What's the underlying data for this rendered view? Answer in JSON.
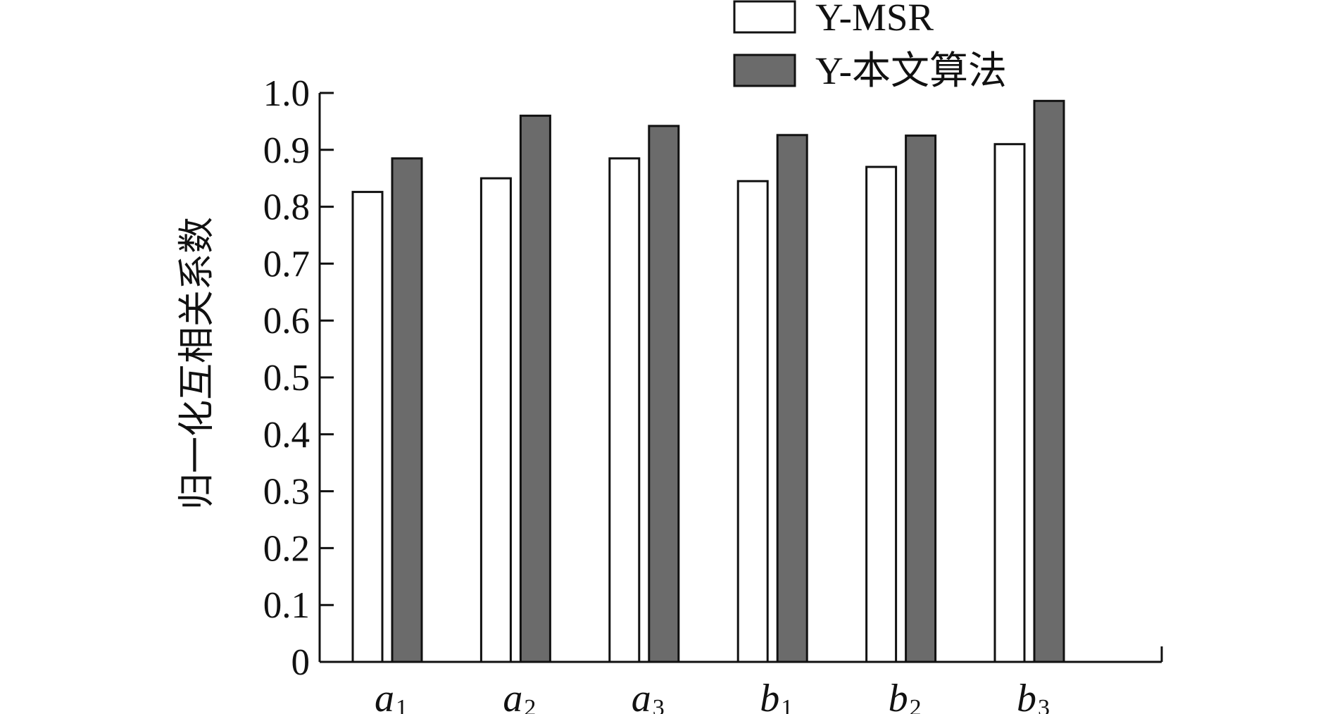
{
  "chart_data": {
    "type": "bar",
    "title": "",
    "xlabel": "",
    "ylabel": "归一化互相关系数",
    "ylim": [
      0,
      1.0
    ],
    "ytick_step": 0.1,
    "ytick_labels": [
      "0",
      "0.1",
      "0.2",
      "0.3",
      "0.4",
      "0.5",
      "0.6",
      "0.7",
      "0.8",
      "0.9",
      "1.0"
    ],
    "categories": [
      {
        "main": "a",
        "sub": "1"
      },
      {
        "main": "a",
        "sub": "2"
      },
      {
        "main": "a",
        "sub": "3"
      },
      {
        "main": "b",
        "sub": "1"
      },
      {
        "main": "b",
        "sub": "2"
      },
      {
        "main": "b",
        "sub": "3"
      }
    ],
    "series": [
      {
        "name": "Y-MSR",
        "color": "#ffffff",
        "values": [
          0.826,
          0.85,
          0.885,
          0.845,
          0.87,
          0.91
        ]
      },
      {
        "name": "Y-本文算法",
        "color": "#6b6b6b",
        "values": [
          0.885,
          0.96,
          0.942,
          0.926,
          0.925,
          0.986
        ]
      }
    ],
    "legend_position": "top-right",
    "grid": false
  }
}
